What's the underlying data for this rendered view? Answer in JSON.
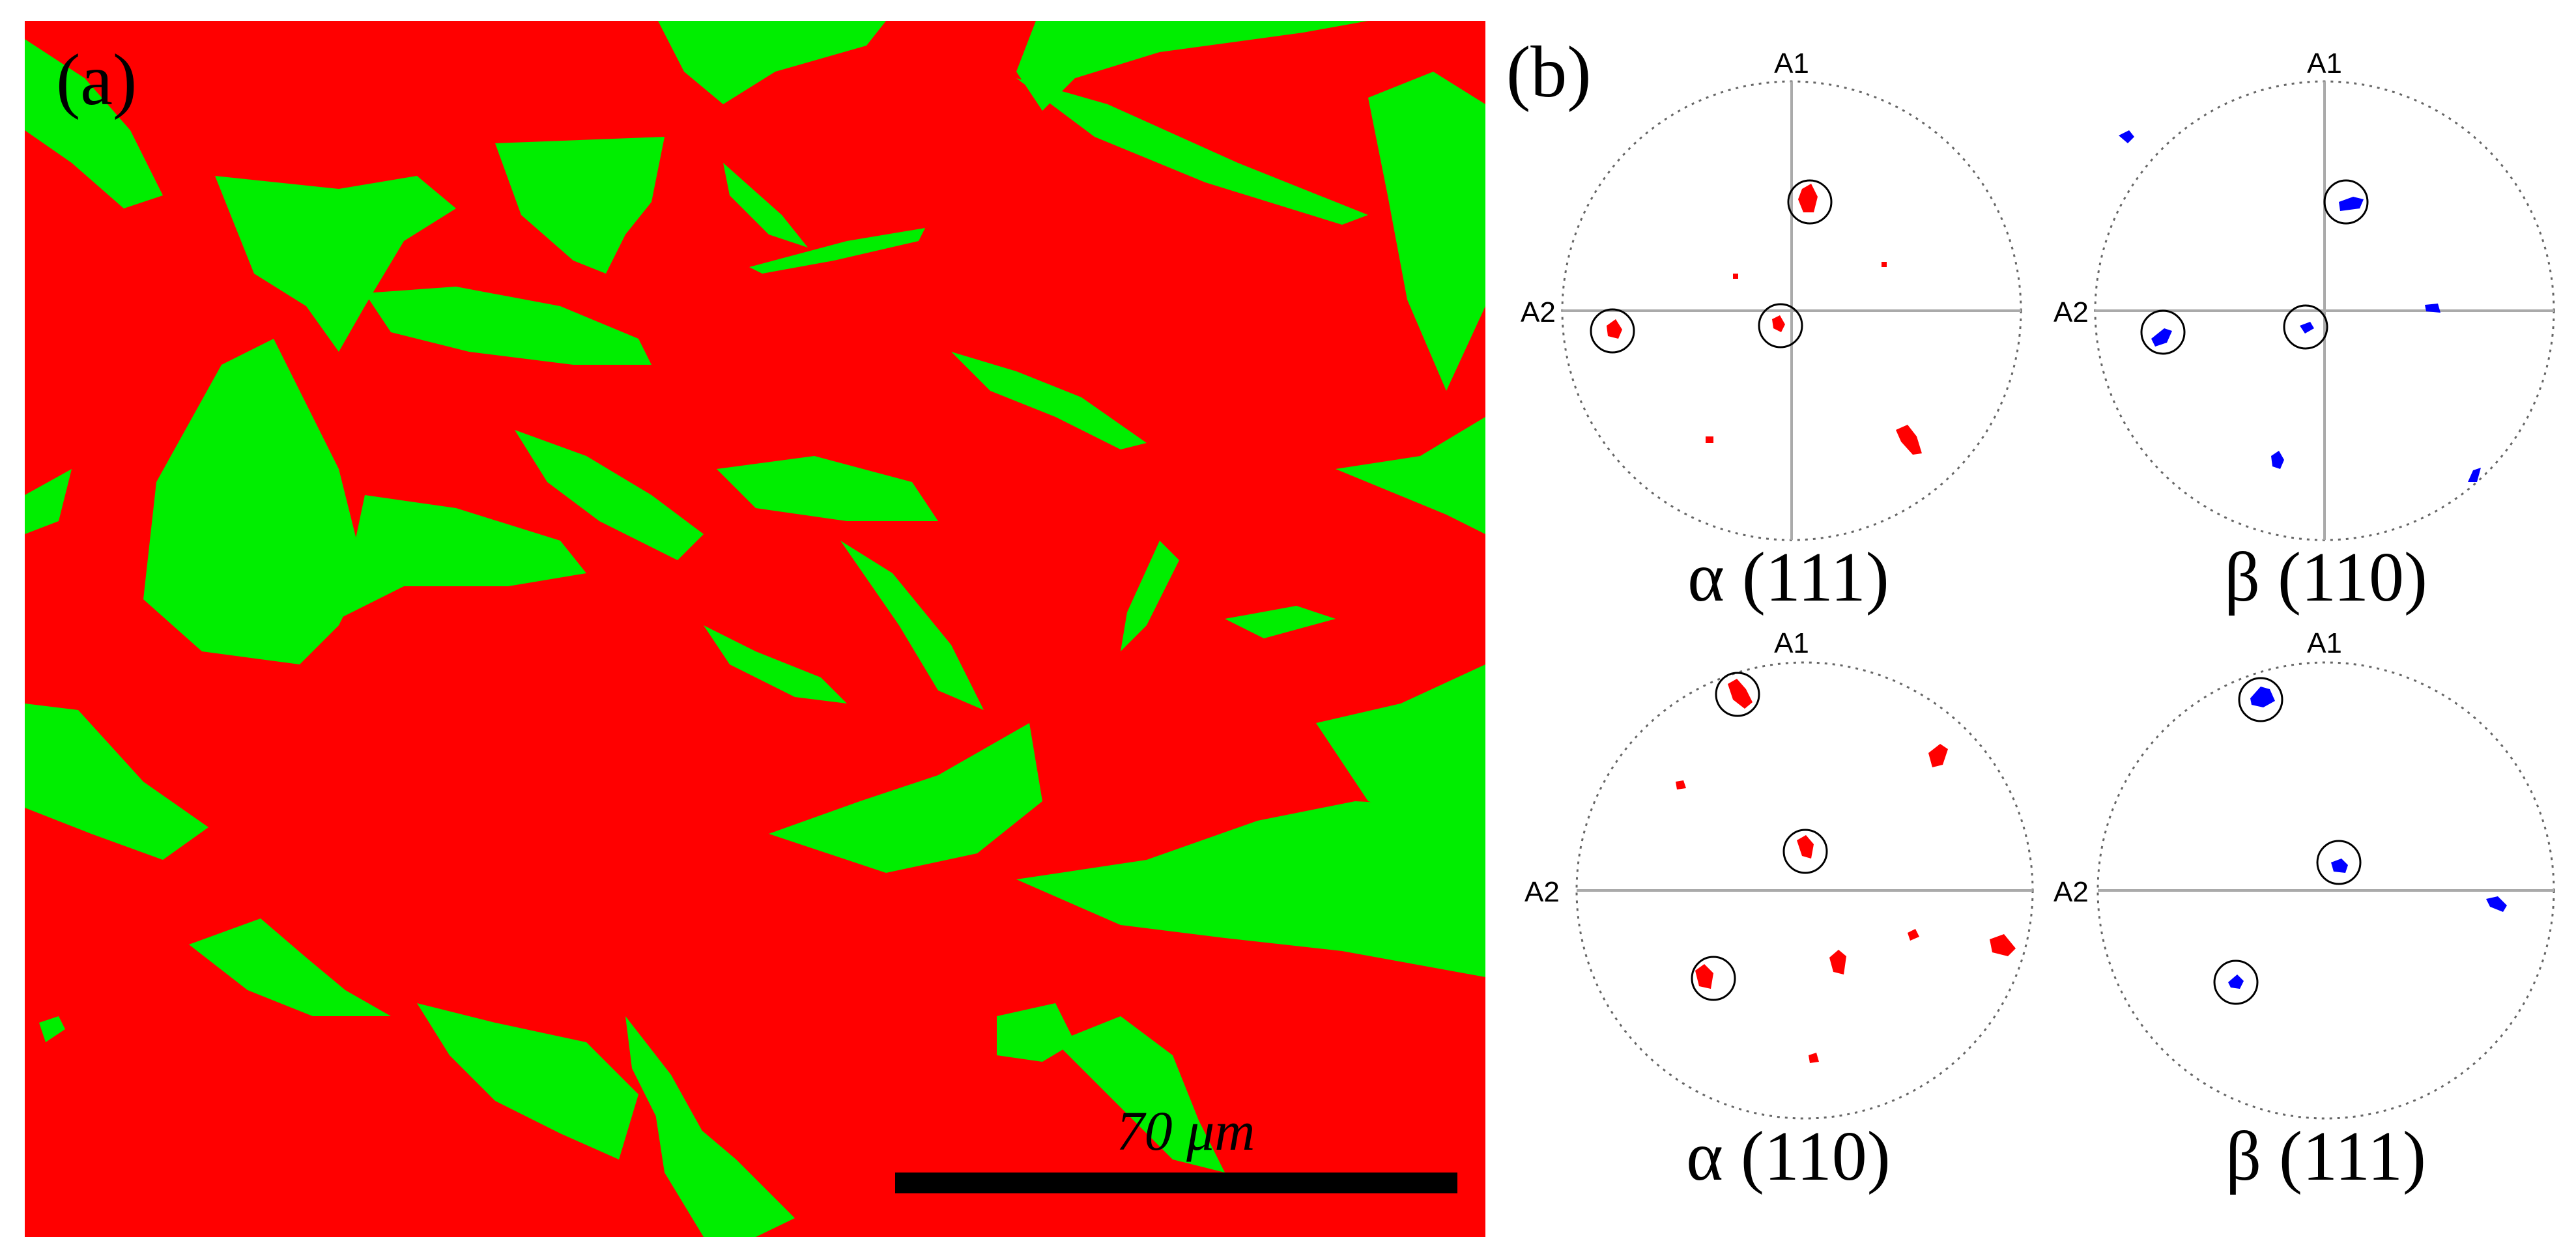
{
  "panel_a": {
    "label": "(a)",
    "phase_colors": {
      "alpha": "#ff0000",
      "beta": "#00ee00"
    },
    "scale_bar": {
      "text": "70 μm",
      "color": "#000000"
    }
  },
  "panel_b": {
    "label": "(b)",
    "pole_figures": [
      {
        "id": "alpha-111",
        "caption": "α (111)",
        "axis_top": "A1",
        "axis_left": "A2",
        "phase": "alpha",
        "pole_color": "#ff0000"
      },
      {
        "id": "beta-110",
        "caption": "β (110)",
        "axis_top": "A1",
        "axis_left": "A2",
        "phase": "beta",
        "pole_color": "#0000ff"
      },
      {
        "id": "alpha-110",
        "caption": "α (110)",
        "axis_top": "A1",
        "axis_left": "A2",
        "phase": "alpha",
        "pole_color": "#ff0000"
      },
      {
        "id": "beta-111",
        "caption": "β (111)",
        "axis_top": "A1",
        "axis_left": "A2",
        "phase": "beta",
        "pole_color": "#0000ff"
      }
    ]
  }
}
